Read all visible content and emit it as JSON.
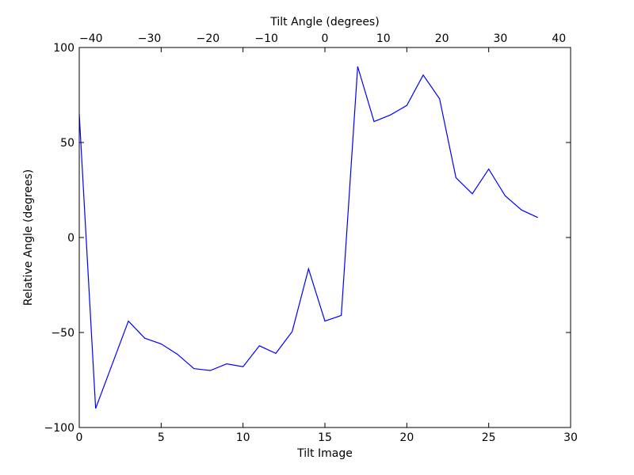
{
  "chart_data": {
    "type": "line",
    "title": "",
    "xlabel": "Tilt Image",
    "ylabel": "Relative Angle (degrees)",
    "top_xlabel": "Tilt Angle (degrees)",
    "xlim": [
      0,
      30
    ],
    "ylim": [
      -100,
      100
    ],
    "top_xlim": [
      -42,
      42
    ],
    "xticks": [
      0,
      5,
      10,
      15,
      20,
      25,
      30
    ],
    "yticks": [
      -100,
      -50,
      0,
      50,
      100
    ],
    "top_xticks": [
      -40,
      -30,
      -20,
      -10,
      0,
      10,
      20,
      30,
      40
    ],
    "xtick_labels": [
      "0",
      "5",
      "10",
      "15",
      "20",
      "25",
      "30"
    ],
    "ytick_labels": [
      "−100",
      "−50",
      "0",
      "50",
      "100"
    ],
    "top_xtick_labels": [
      "−40",
      "−30",
      "−20",
      "−10",
      "0",
      "10",
      "20",
      "30",
      "40"
    ],
    "grid": false,
    "line_color": "#0000ff",
    "series": [
      {
        "x": [
          0,
          1,
          2,
          3,
          4,
          5,
          6,
          7,
          8,
          9,
          10,
          11,
          12,
          13,
          14,
          15,
          16,
          17,
          18,
          19,
          20,
          21,
          22,
          23,
          24,
          25,
          26,
          27,
          28
        ],
        "values": [
          65,
          -90,
          -67,
          -44,
          -53,
          -56,
          -61.5,
          -69,
          -70,
          -66.5,
          -68,
          -57,
          -61,
          -49.5,
          -16.5,
          -44,
          -41,
          90,
          61,
          64.5,
          69.5,
          85.5,
          73,
          31.5,
          23,
          36,
          22,
          14.5,
          10.5
        ]
      }
    ]
  }
}
